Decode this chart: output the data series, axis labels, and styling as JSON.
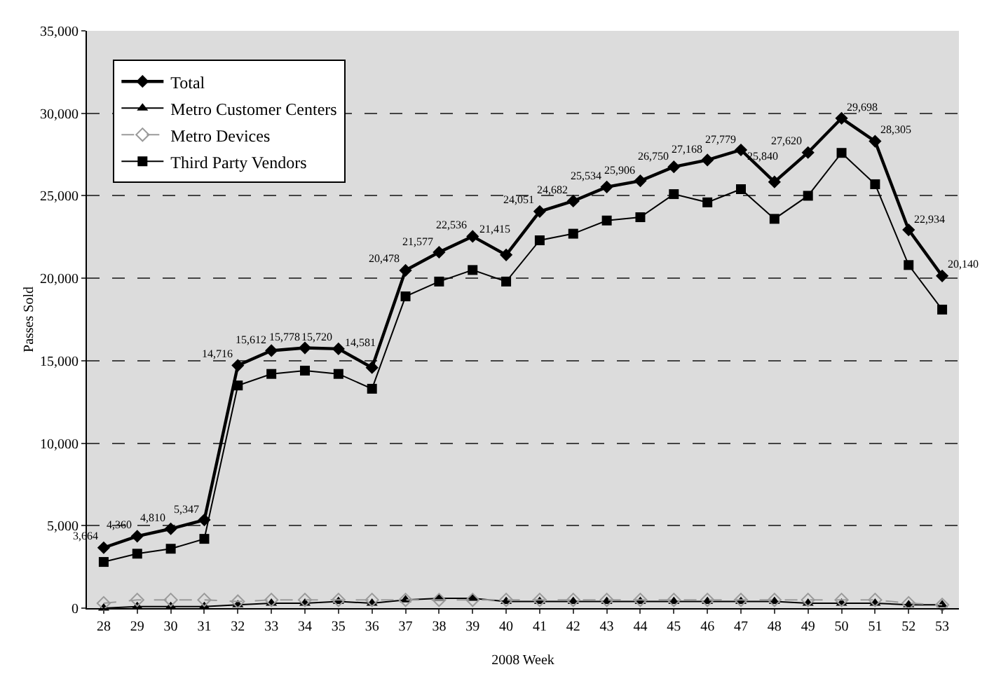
{
  "chart_data": {
    "type": "line",
    "xlabel": "2008 Week",
    "ylabel": "Passes Sold",
    "categories": [
      "28",
      "29",
      "30",
      "31",
      "32",
      "33",
      "34",
      "35",
      "36",
      "37",
      "38",
      "39",
      "40",
      "41",
      "42",
      "43",
      "44",
      "45",
      "46",
      "47",
      "48",
      "49",
      "50",
      "51",
      "52",
      "53"
    ],
    "series": [
      {
        "name": "Total",
        "color": "#000000",
        "marker": "diamond",
        "line_style": "solid",
        "value_labels": [
          "3,664",
          "4,360",
          "4,810",
          "5,347",
          "14,716",
          "15,612",
          "15,778",
          "15,720",
          "14,581",
          "20,478",
          "21,577",
          "22,536",
          "21,415",
          "24,051",
          "24,682",
          "25,534",
          "25,906",
          "26,750",
          "27,168",
          "27,779",
          "25,840",
          "27,620",
          "29,698",
          "28,305",
          "22,934",
          "20,140"
        ],
        "values": [
          3664,
          4360,
          4810,
          5347,
          14716,
          15612,
          15778,
          15720,
          14581,
          20478,
          21577,
          22536,
          21415,
          24051,
          24682,
          25534,
          25906,
          26750,
          27168,
          27779,
          25840,
          27620,
          29698,
          28305,
          22934,
          20140
        ]
      },
      {
        "name": "Metro Customer Centers",
        "color": "#000000",
        "marker": "triangle",
        "line_style": "solid",
        "values": [
          0,
          100,
          100,
          100,
          200,
          300,
          300,
          400,
          300,
          500,
          600,
          600,
          400,
          400,
          400,
          400,
          400,
          400,
          400,
          400,
          400,
          300,
          300,
          300,
          200,
          200
        ]
      },
      {
        "name": "Metro Devices",
        "color": "#9a9a9a",
        "marker": "diamond",
        "line_style": "dashed",
        "values": [
          300,
          500,
          500,
          500,
          400,
          500,
          500,
          500,
          500,
          500,
          500,
          500,
          500,
          500,
          500,
          500,
          500,
          500,
          500,
          500,
          500,
          500,
          500,
          500,
          300,
          200
        ]
      },
      {
        "name": "Third Party Vendors",
        "color": "#000000",
        "marker": "square",
        "line_style": "solid",
        "values": [
          2800,
          3300,
          3600,
          4200,
          13500,
          14200,
          14400,
          14200,
          13300,
          18900,
          19800,
          20500,
          19800,
          22300,
          22700,
          23500,
          23700,
          25100,
          24600,
          25400,
          23600,
          25000,
          27600,
          25700,
          20800,
          18100
        ]
      }
    ],
    "ylim": [
      0,
      35000
    ],
    "yticks": [
      {
        "value": 0,
        "label": "0"
      },
      {
        "value": 5000,
        "label": "5,000"
      },
      {
        "value": 10000,
        "label": "10,000"
      },
      {
        "value": 15000,
        "label": "15,000"
      },
      {
        "value": 20000,
        "label": "20,000"
      },
      {
        "value": 25000,
        "label": "25,000"
      },
      {
        "value": 30000,
        "label": "30,000"
      },
      {
        "value": 35000,
        "label": "35,000"
      }
    ],
    "grid": "y",
    "legend": "top left"
  }
}
